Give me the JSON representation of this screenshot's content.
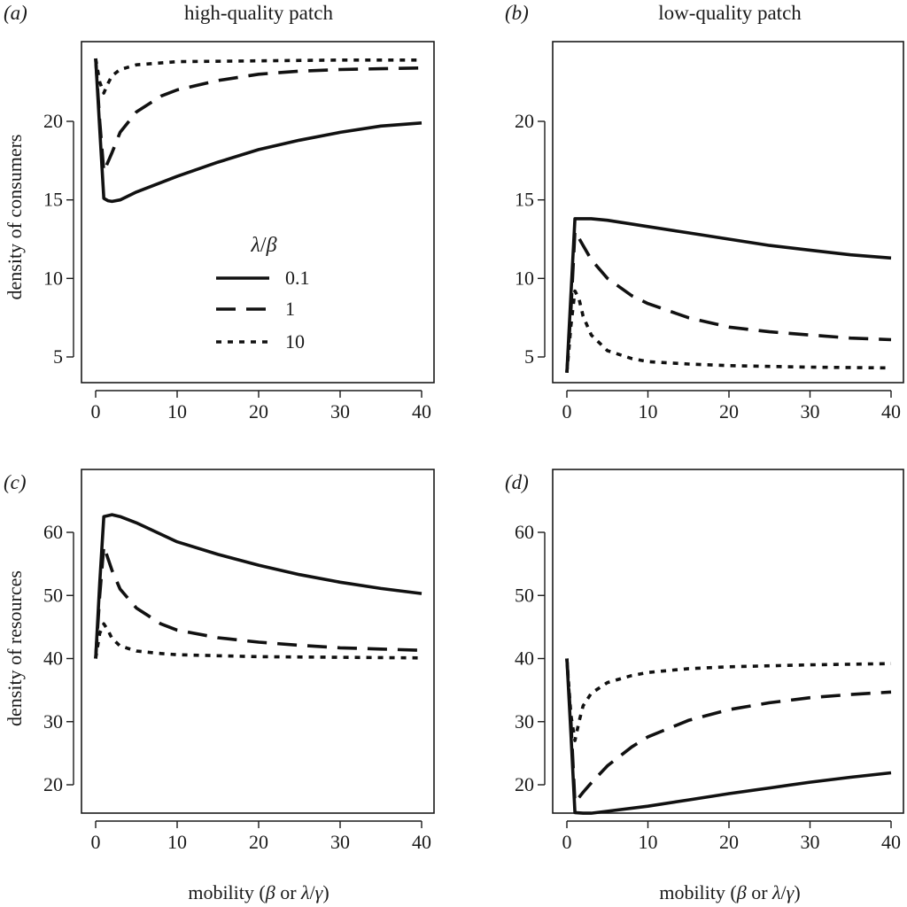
{
  "figure": {
    "column_titles": [
      "high-quality patch",
      "low-quality patch"
    ],
    "row_ylabels": [
      "density of consumers",
      "density of resources"
    ],
    "xlabel": {
      "prefix": "mobility (",
      "beta": "β",
      "middle": " or ",
      "lambda": "λ",
      "slash": "/",
      "gamma": "γ",
      "suffix": ")"
    }
  },
  "legend": {
    "title_lambda": "λ",
    "title_slash": "/",
    "title_beta": "β",
    "entries": [
      "0.1",
      "1",
      "10"
    ]
  },
  "chart_data": [
    {
      "panel": "(a)",
      "type": "line",
      "title": "high-quality patch",
      "xlabel": "",
      "ylabel": "density of consumers",
      "xlim": [
        0,
        40
      ],
      "ylim": [
        3,
        24.5
      ],
      "xticks": [
        0,
        10,
        20,
        30,
        40
      ],
      "yticks": [
        5,
        10,
        15,
        20
      ],
      "legend_title": "λ/β",
      "legend_position": "center",
      "series": [
        {
          "name": "0.1",
          "style": "solid",
          "x": [
            0,
            0.5,
            1,
            1.5,
            2,
            3,
            5,
            10,
            15,
            20,
            25,
            30,
            35,
            40
          ],
          "y": [
            24,
            19.5,
            15.1,
            14.95,
            14.9,
            15,
            15.5,
            16.5,
            17.4,
            18.2,
            18.8,
            19.3,
            19.7,
            19.9
          ]
        },
        {
          "name": "1",
          "style": "dashed",
          "x": [
            0,
            0.5,
            1,
            2,
            3,
            5,
            8,
            10,
            15,
            20,
            25,
            30,
            35,
            40
          ],
          "y": [
            24,
            20,
            16.8,
            18,
            19.3,
            20.6,
            21.6,
            22,
            22.6,
            23,
            23.2,
            23.3,
            23.35,
            23.4
          ]
        },
        {
          "name": "10",
          "style": "dotted",
          "x": [
            0,
            0.5,
            1,
            1.5,
            2,
            3,
            5,
            10,
            20,
            30,
            40
          ],
          "y": [
            24,
            22.5,
            21.8,
            22.4,
            22.9,
            23.3,
            23.6,
            23.8,
            23.85,
            23.9,
            23.9
          ]
        }
      ]
    },
    {
      "panel": "(b)",
      "type": "line",
      "title": "low-quality patch",
      "xlabel": "",
      "ylabel": "",
      "xlim": [
        0,
        40
      ],
      "ylim": [
        3,
        24.5
      ],
      "xticks": [
        0,
        10,
        20,
        30,
        40
      ],
      "yticks": [
        5,
        10,
        15,
        20
      ],
      "series": [
        {
          "name": "0.1",
          "style": "solid",
          "x": [
            0,
            0.5,
            1,
            2,
            3,
            5,
            10,
            15,
            20,
            25,
            30,
            35,
            40
          ],
          "y": [
            4,
            9,
            13.8,
            13.8,
            13.8,
            13.7,
            13.3,
            12.9,
            12.5,
            12.1,
            11.8,
            11.5,
            11.3
          ]
        },
        {
          "name": "1",
          "style": "dashed",
          "x": [
            0,
            0.5,
            1,
            2,
            3,
            5,
            8,
            10,
            15,
            20,
            25,
            30,
            35,
            40
          ],
          "y": [
            4,
            8,
            13,
            12.1,
            11.2,
            10,
            8.9,
            8.4,
            7.5,
            6.9,
            6.6,
            6.4,
            6.2,
            6.1
          ]
        },
        {
          "name": "10",
          "style": "dotted",
          "x": [
            0,
            0.5,
            1,
            1.5,
            2,
            3,
            5,
            8,
            10,
            15,
            20,
            30,
            40
          ],
          "y": [
            4,
            7,
            9.2,
            8.7,
            7.6,
            6.4,
            5.4,
            4.9,
            4.7,
            4.55,
            4.45,
            4.35,
            4.3
          ]
        }
      ]
    },
    {
      "panel": "(c)",
      "type": "line",
      "title": "",
      "xlabel": "mobility (β or λ/γ)",
      "ylabel": "density of resources",
      "xlim": [
        0,
        40
      ],
      "ylim": [
        13,
        65.5
      ],
      "xticks": [
        0,
        10,
        20,
        30,
        40
      ],
      "yticks": [
        20,
        30,
        40,
        50,
        60
      ],
      "series": [
        {
          "name": "0.1",
          "style": "solid",
          "x": [
            0,
            0.5,
            1,
            2,
            3,
            5,
            10,
            15,
            20,
            25,
            30,
            35,
            40
          ],
          "y": [
            40,
            52,
            62.5,
            62.8,
            62.5,
            61.5,
            58.5,
            56.5,
            54.8,
            53.3,
            52.1,
            51.1,
            50.3
          ]
        },
        {
          "name": "1",
          "style": "dashed",
          "x": [
            0,
            0.5,
            1,
            2,
            3,
            5,
            8,
            10,
            15,
            20,
            25,
            30,
            35,
            40
          ],
          "y": [
            40,
            50,
            57.8,
            54,
            51,
            48,
            45.5,
            44.5,
            43.3,
            42.6,
            42.1,
            41.7,
            41.5,
            41.3
          ]
        },
        {
          "name": "10",
          "style": "dotted",
          "x": [
            0,
            0.5,
            1,
            1.5,
            2,
            3,
            5,
            8,
            10,
            20,
            30,
            40
          ],
          "y": [
            40,
            44,
            45.5,
            44.5,
            43.2,
            42,
            41.2,
            40.8,
            40.6,
            40.3,
            40.2,
            40.1
          ]
        }
      ]
    },
    {
      "panel": "(d)",
      "type": "line",
      "title": "",
      "xlabel": "mobility (β or λ/γ)",
      "ylabel": "",
      "xlim": [
        0,
        40
      ],
      "ylim": [
        13,
        65.5
      ],
      "xticks": [
        0,
        10,
        20,
        30,
        40
      ],
      "yticks": [
        20,
        30,
        40,
        50,
        60
      ],
      "series": [
        {
          "name": "0.1",
          "style": "solid",
          "x": [
            0,
            0.5,
            1,
            2,
            3,
            5,
            10,
            15,
            20,
            25,
            30,
            35,
            40
          ],
          "y": [
            40,
            28,
            15.6,
            15.5,
            15.5,
            15.8,
            16.6,
            17.6,
            18.6,
            19.5,
            20.4,
            21.2,
            21.9
          ]
        },
        {
          "name": "1",
          "style": "dashed",
          "x": [
            0,
            0.5,
            1,
            2,
            3,
            5,
            8,
            10,
            15,
            20,
            25,
            30,
            35,
            40
          ],
          "y": [
            40,
            30,
            17.2,
            18.8,
            20.3,
            23,
            26,
            27.6,
            30.2,
            31.9,
            33,
            33.8,
            34.3,
            34.7
          ]
        },
        {
          "name": "10",
          "style": "dotted",
          "x": [
            0,
            0.5,
            1,
            1.5,
            2,
            3,
            5,
            8,
            10,
            15,
            20,
            30,
            40
          ],
          "y": [
            40,
            31,
            27,
            30,
            32.5,
            34.5,
            36.2,
            37.3,
            37.8,
            38.4,
            38.7,
            39,
            39.2
          ]
        }
      ]
    }
  ]
}
